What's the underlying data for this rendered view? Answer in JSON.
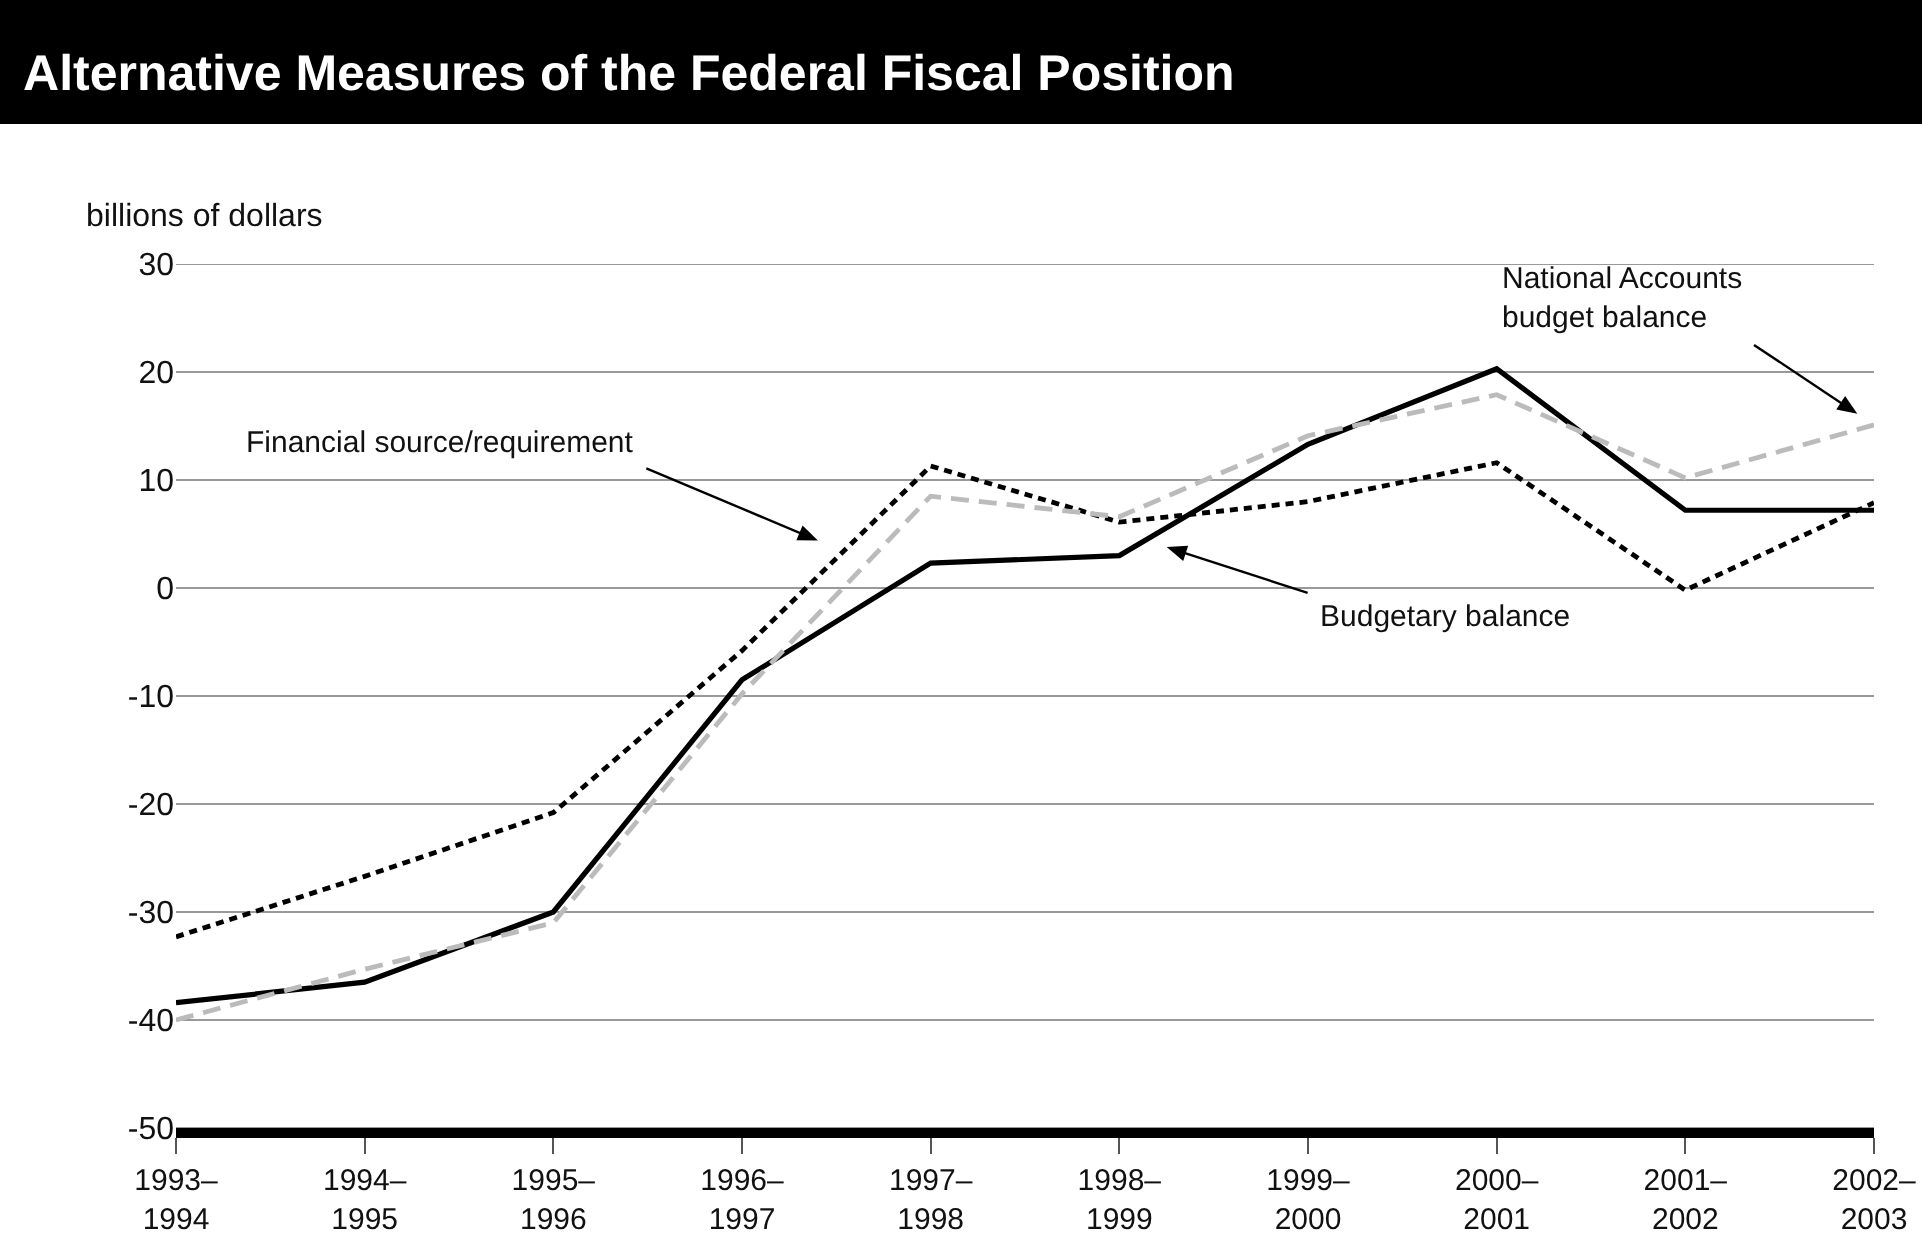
{
  "chart_data": {
    "type": "line",
    "title": "Alternative Measures of the Federal Fiscal Position",
    "ylabel": "billions of dollars",
    "categories": [
      "1993–1994",
      "1994–1995",
      "1995–1996",
      "1996–1997",
      "1997–1998",
      "1998–1999",
      "1999–2000",
      "2000–2001",
      "2001–2002",
      "2002–2003"
    ],
    "series": [
      {
        "color": "#000000",
        "line_style": "solid",
        "values": [
          -38.4,
          -36.5,
          -30,
          -8.5,
          2.3,
          3.0,
          13.3,
          20.3,
          7.2,
          7.2
        ]
      },
      {
        "color": "#000000",
        "line_style": "dotted",
        "values": [
          -32.3,
          -26.7,
          -20.8,
          -5.8,
          11.3,
          6.1,
          8.0,
          11.6,
          -0.2,
          7.9
        ]
      },
      {
        "color": "#bbbbbb",
        "line_style": "dashed",
        "values": [
          -40,
          -35.3,
          -31,
          -9.8,
          8.5,
          6.6,
          14.1,
          17.9,
          10.2,
          15.1
        ]
      }
    ],
    "ylim": [
      -50,
      30
    ],
    "yticks": [
      -50,
      -40,
      -30,
      -20,
      -10,
      0,
      10,
      20,
      30
    ],
    "grid": "y",
    "marker": "none",
    "annotations": [
      "Financial source/requirement",
      "Budgetary balance",
      "National Accounts\nbudget balance"
    ]
  }
}
